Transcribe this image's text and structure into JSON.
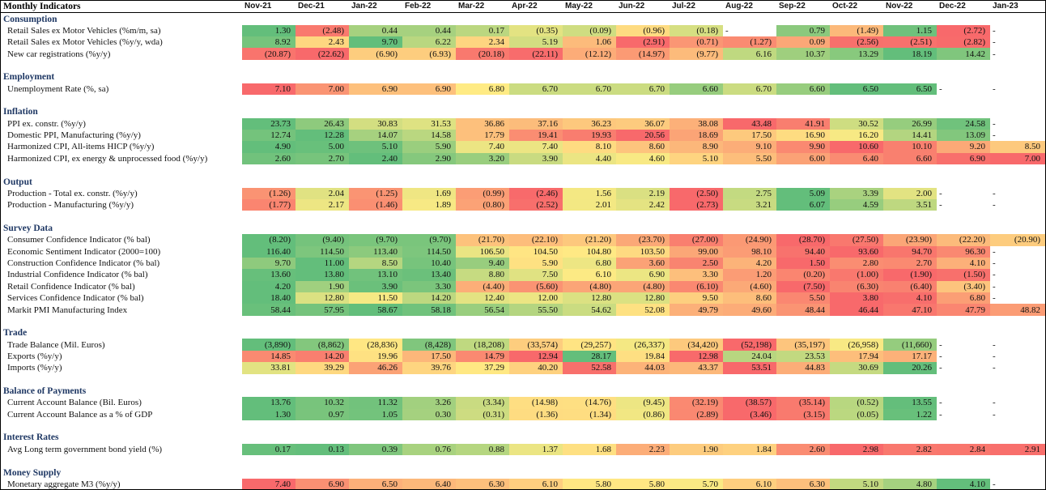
{
  "title": "Monthly Indicators",
  "months": [
    "Nov-21",
    "Dec-21",
    "Jan-22",
    "Feb-22",
    "Mar-22",
    "Apr-22",
    "May-22",
    "Jun-22",
    "Jul-22",
    "Aug-22",
    "Sep-22",
    "Oct-22",
    "Nov-22",
    "Dec-22",
    "Jan-23"
  ],
  "scale_colors": {
    "low": "#f8696b",
    "mid": "#ffeb84",
    "high": "#63be7b",
    "dash": "#ffffff"
  },
  "sections": [
    {
      "name": "Consumption",
      "rows": [
        {
          "label": "Retail Sales ex Motor Vehicles (%m/m, sa)",
          "dir": "up",
          "values": [
            "1.30",
            "(2.48)",
            "0.44",
            "0.44",
            "0.17",
            "(0.35)",
            "(0.09)",
            "(0.96)",
            "(0.18)",
            "-",
            "0.79",
            "(1.49)",
            "1.15",
            "(2.72)",
            "-"
          ]
        },
        {
          "label": "Retail Sales ex Motor Vehicles (%y/y, wda)",
          "dir": "up",
          "values": [
            "8.92",
            "2.43",
            "9.70",
            "6.22",
            "2.34",
            "5.19",
            "1.06",
            "(2.91)",
            "(0.71)",
            "(1.27)",
            "0.09",
            "(2.56)",
            "(2.51)",
            "(2.82)",
            "-"
          ]
        },
        {
          "label": "New car registrations (%y/y)",
          "dir": "up",
          "values": [
            "(20.87)",
            "(22.62)",
            "(6.90)",
            "(6.93)",
            "(20.18)",
            "(22.11)",
            "(12.12)",
            "(14.97)",
            "(9.77)",
            "6.16",
            "10.37",
            "13.29",
            "18.19",
            "14.42",
            "-"
          ]
        }
      ]
    },
    {
      "name": "Employment",
      "rows": [
        {
          "label": "Unemployment Rate (%, sa)",
          "dir": "down",
          "values": [
            "7.10",
            "7.00",
            "6.90",
            "6.90",
            "6.80",
            "6.70",
            "6.70",
            "6.70",
            "6.60",
            "6.70",
            "6.60",
            "6.50",
            "6.50",
            "-",
            "-"
          ]
        }
      ]
    },
    {
      "name": "Inflation",
      "rows": [
        {
          "label": "PPI ex. constr. (%y/y)",
          "dir": "down",
          "values": [
            "23.73",
            "26.43",
            "30.83",
            "31.53",
            "36.86",
            "37.16",
            "36.23",
            "36.07",
            "38.08",
            "43.48",
            "41.91",
            "30.52",
            "26.99",
            "24.58",
            "-"
          ]
        },
        {
          "label": "Domestic PPI, Manufacturing (%y/y)",
          "dir": "down",
          "values": [
            "12.74",
            "12.28",
            "14.07",
            "14.58",
            "17.79",
            "19.41",
            "19.93",
            "20.56",
            "18.69",
            "17.50",
            "16.90",
            "16.20",
            "14.41",
            "13.09",
            "-"
          ]
        },
        {
          "label": "Harmonized CPI, All-items HICP (%y/y)",
          "dir": "down",
          "values": [
            "4.90",
            "5.00",
            "5.10",
            "5.90",
            "7.40",
            "7.40",
            "8.10",
            "8.60",
            "8.90",
            "9.10",
            "9.90",
            "10.60",
            "10.10",
            "9.20",
            "8.50"
          ]
        },
        {
          "label": "Harmonized CPI, ex energy & unprocessed food (%y/y)",
          "dir": "down",
          "values": [
            "2.60",
            "2.70",
            "2.40",
            "2.90",
            "3.20",
            "3.90",
            "4.40",
            "4.60",
            "5.10",
            "5.50",
            "6.00",
            "6.40",
            "6.60",
            "6.90",
            "7.00"
          ]
        }
      ]
    },
    {
      "name": "Output",
      "rows": [
        {
          "label": "Production - Total ex. constr. (%y/y)",
          "dir": "up",
          "values": [
            "(1.26)",
            "2.04",
            "(1.25)",
            "1.69",
            "(0.99)",
            "(2.46)",
            "1.56",
            "2.19",
            "(2.50)",
            "2.75",
            "5.09",
            "3.39",
            "2.00",
            "-",
            "-"
          ]
        },
        {
          "label": "Production - Manufacturing (%y/y)",
          "dir": "up",
          "values": [
            "(1.77)",
            "2.17",
            "(1.46)",
            "1.89",
            "(0.80)",
            "(2.52)",
            "2.01",
            "2.42",
            "(2.73)",
            "3.21",
            "6.07",
            "4.59",
            "3.51",
            "-",
            "-"
          ]
        }
      ]
    },
    {
      "name": "Survey Data",
      "rows": [
        {
          "label": "Consumer Confidence Indicator (% bal)",
          "dir": "up",
          "values": [
            "(8.20)",
            "(9.40)",
            "(9.70)",
            "(9.70)",
            "(21.70)",
            "(22.10)",
            "(21.20)",
            "(23.70)",
            "(27.00)",
            "(24.90)",
            "(28.70)",
            "(27.50)",
            "(23.90)",
            "(22.20)",
            "(20.90)"
          ]
        },
        {
          "label": "Economic Sentiment Indicator (2000=100)",
          "dir": "up",
          "values": [
            "116.40",
            "114.50",
            "113.40",
            "114.50",
            "106.50",
            "104.50",
            "104.80",
            "103.50",
            "99.00",
            "98.10",
            "94.40",
            "93.60",
            "94.70",
            "96.30",
            "-"
          ]
        },
        {
          "label": "Construction Confidence Indicator (% bal)",
          "dir": "up",
          "values": [
            "9.70",
            "11.00",
            "8.50",
            "10.40",
            "9.40",
            "5.90",
            "6.80",
            "3.60",
            "2.50",
            "4.20",
            "1.50",
            "2.80",
            "2.70",
            "4.10",
            "-"
          ]
        },
        {
          "label": "Industrial Confidence Indicator (% bal)",
          "dir": "up",
          "values": [
            "13.60",
            "13.80",
            "13.10",
            "13.40",
            "8.80",
            "7.50",
            "6.10",
            "6.90",
            "3.30",
            "1.20",
            "(0.20)",
            "(1.00)",
            "(1.90)",
            "(1.50)",
            "-"
          ]
        },
        {
          "label": "Retail Confidence Indicator (% bal)",
          "dir": "up",
          "values": [
            "4.20",
            "1.90",
            "3.90",
            "3.30",
            "(4.40)",
            "(5.60)",
            "(4.80)",
            "(4.80)",
            "(6.10)",
            "(4.60)",
            "(7.50)",
            "(6.30)",
            "(6.40)",
            "(3.40)",
            "-"
          ]
        },
        {
          "label": "Services Confidence Indicator (% bal)",
          "dir": "up",
          "values": [
            "18.40",
            "12.80",
            "11.50",
            "14.20",
            "12.40",
            "12.00",
            "12.80",
            "12.80",
            "9.50",
            "8.60",
            "5.50",
            "3.80",
            "4.10",
            "6.80",
            "-"
          ]
        },
        {
          "label": "Markit PMI Manufacturing Index",
          "dir": "up",
          "values": [
            "58.44",
            "57.95",
            "58.67",
            "58.18",
            "56.54",
            "55.50",
            "54.62",
            "52.08",
            "49.79",
            "49.60",
            "48.44",
            "46.44",
            "47.10",
            "47.79",
            "48.82"
          ]
        }
      ]
    },
    {
      "name": "Trade",
      "rows": [
        {
          "label": "Trade Balance (Mil. Euros)",
          "dir": "up",
          "values": [
            "(3,890)",
            "(8,862)",
            "(28,836)",
            "(8,428)",
            "(18,208)",
            "(33,574)",
            "(29,257)",
            "(26,337)",
            "(34,420)",
            "(52,198)",
            "(35,197)",
            "(26,958)",
            "(11,660)",
            "-",
            "-"
          ]
        },
        {
          "label": "Exports (%y/y)",
          "dir": "up",
          "values": [
            "14.85",
            "14.20",
            "19.96",
            "17.50",
            "14.79",
            "12.94",
            "28.17",
            "19.84",
            "12.98",
            "24.04",
            "23.53",
            "17.94",
            "17.17",
            "-",
            "-"
          ]
        },
        {
          "label": "Imports (%y/y)",
          "dir": "down",
          "values": [
            "33.81",
            "39.29",
            "46.26",
            "39.76",
            "37.29",
            "40.20",
            "52.58",
            "44.03",
            "43.37",
            "53.51",
            "44.83",
            "30.69",
            "20.26",
            "-",
            "-"
          ]
        }
      ]
    },
    {
      "name": "Balance of Payments",
      "rows": [
        {
          "label": "Current Account Balance (Bil. Euros)",
          "dir": "up",
          "values": [
            "13.76",
            "10.32",
            "11.32",
            "3.26",
            "(3.34)",
            "(14.98)",
            "(14.76)",
            "(9.45)",
            "(32.19)",
            "(38.57)",
            "(35.14)",
            "(0.52)",
            "13.55",
            "-",
            "-"
          ]
        },
        {
          "label": "Current Account Balance as a % of GDP",
          "dir": "up",
          "values": [
            "1.30",
            "0.97",
            "1.05",
            "0.30",
            "(0.31)",
            "(1.36)",
            "(1.34)",
            "(0.86)",
            "(2.89)",
            "(3.46)",
            "(3.15)",
            "(0.05)",
            "1.22",
            "-",
            "-"
          ]
        }
      ]
    },
    {
      "name": "Interest Rates",
      "rows": [
        {
          "label": "Avg Long term government bond yield (%)",
          "dir": "down",
          "values": [
            "0.17",
            "0.13",
            "0.39",
            "0.76",
            "0.88",
            "1.37",
            "1.68",
            "2.23",
            "1.90",
            "1.84",
            "2.60",
            "2.98",
            "2.82",
            "2.84",
            "2.91"
          ]
        }
      ]
    },
    {
      "name": "Money Supply",
      "rows": [
        {
          "label": "Monetary aggregate M3 (%y/y)",
          "dir": "down",
          "values": [
            "7.40",
            "6.90",
            "6.50",
            "6.40",
            "6.30",
            "6.10",
            "5.80",
            "5.80",
            "5.70",
            "6.10",
            "6.30",
            "5.10",
            "4.80",
            "4.10",
            "-"
          ]
        }
      ]
    }
  ]
}
